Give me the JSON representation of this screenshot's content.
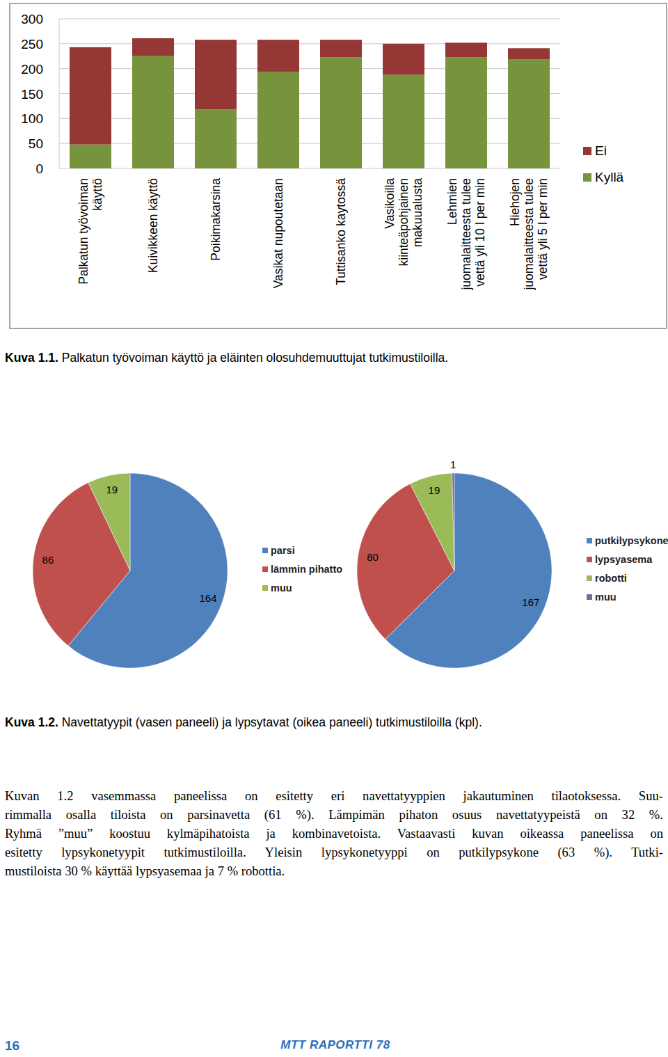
{
  "chart_data": [
    {
      "type": "bar",
      "stacked": true,
      "grid": true,
      "legend": "right",
      "categories": [
        "Palkatun työvoiman käyttö",
        "Kuivikkeen käyttö",
        "Poikimakarsina",
        "Vasikat nupoutetaan",
        "Tuttisanko kaytossä",
        "Vasikoilla kiinteäpohjainen makuualusta",
        "Lehmien juomalaitteesta tulee vettä yli 10 l per min",
        "Hiehojen juomalaitteesta tulee vettä yli 5 l per min"
      ],
      "series": [
        {
          "name": "Kyllä",
          "color": "#77933c",
          "values": [
            48,
            226,
            118,
            194,
            223,
            188,
            223,
            219
          ]
        },
        {
          "name": "Ei",
          "color": "#953735",
          "values": [
            195,
            35,
            140,
            64,
            35,
            62,
            29,
            22
          ]
        }
      ],
      "ylim": [
        0,
        300
      ],
      "yticks": [
        0,
        50,
        100,
        150,
        200,
        250,
        300
      ]
    },
    {
      "type": "pie",
      "data_labels": true,
      "legend": "right",
      "categories": [
        "parsi",
        "lämmin pihatto",
        "muu"
      ],
      "values": [
        164,
        86,
        19
      ],
      "colors": [
        "#4f81bd",
        "#c0504d",
        "#9bbb59"
      ]
    },
    {
      "type": "pie",
      "data_labels": true,
      "legend": "right",
      "categories": [
        "putkilypsykone",
        "lypsyasema",
        "robotti",
        "muu"
      ],
      "values": [
        167,
        80,
        19,
        1
      ],
      "colors": [
        "#4f81bd",
        "#c0504d",
        "#9bbb59",
        "#8064a2"
      ]
    }
  ],
  "captions": [
    {
      "label": "Kuva 1.1.",
      "text": "Palkatun työvoiman käyttö ja eläinten olosuhdemuuttujat tutkimustiloilla."
    },
    {
      "label": "Kuva 1.2.",
      "text": "Navettatyypit (vasen paneeli) ja lypsytavat (oikea paneeli) tutkimustiloilla (kpl)."
    }
  ],
  "paragraph": [
    "Kuvan 1.2 vasemmassa paneelissa on esitetty eri navettatyyppien jakautuminen tilaotoksessa. Suu-",
    "rimmalla osalla tiloista on parsinavetta (61 %). Lämpimän pihaton osuus navettatyypeistä on 32 %.",
    "Ryhmä ”muu” koostuu kylmäpihatoista ja kombinavetoista. Vastaavasti kuvan oikeassa paneelissa on",
    "esitetty lypsykonetyypit tutkimustiloilla. Yleisin lypsykonetyyppi on putkilypsykone (63 %). Tutki-",
    "mustiloista 30 % käyttää lypsyasemaa ja 7 % robottia."
  ],
  "footer": {
    "page": "16",
    "series": "MTT RAPORTTI 78"
  }
}
